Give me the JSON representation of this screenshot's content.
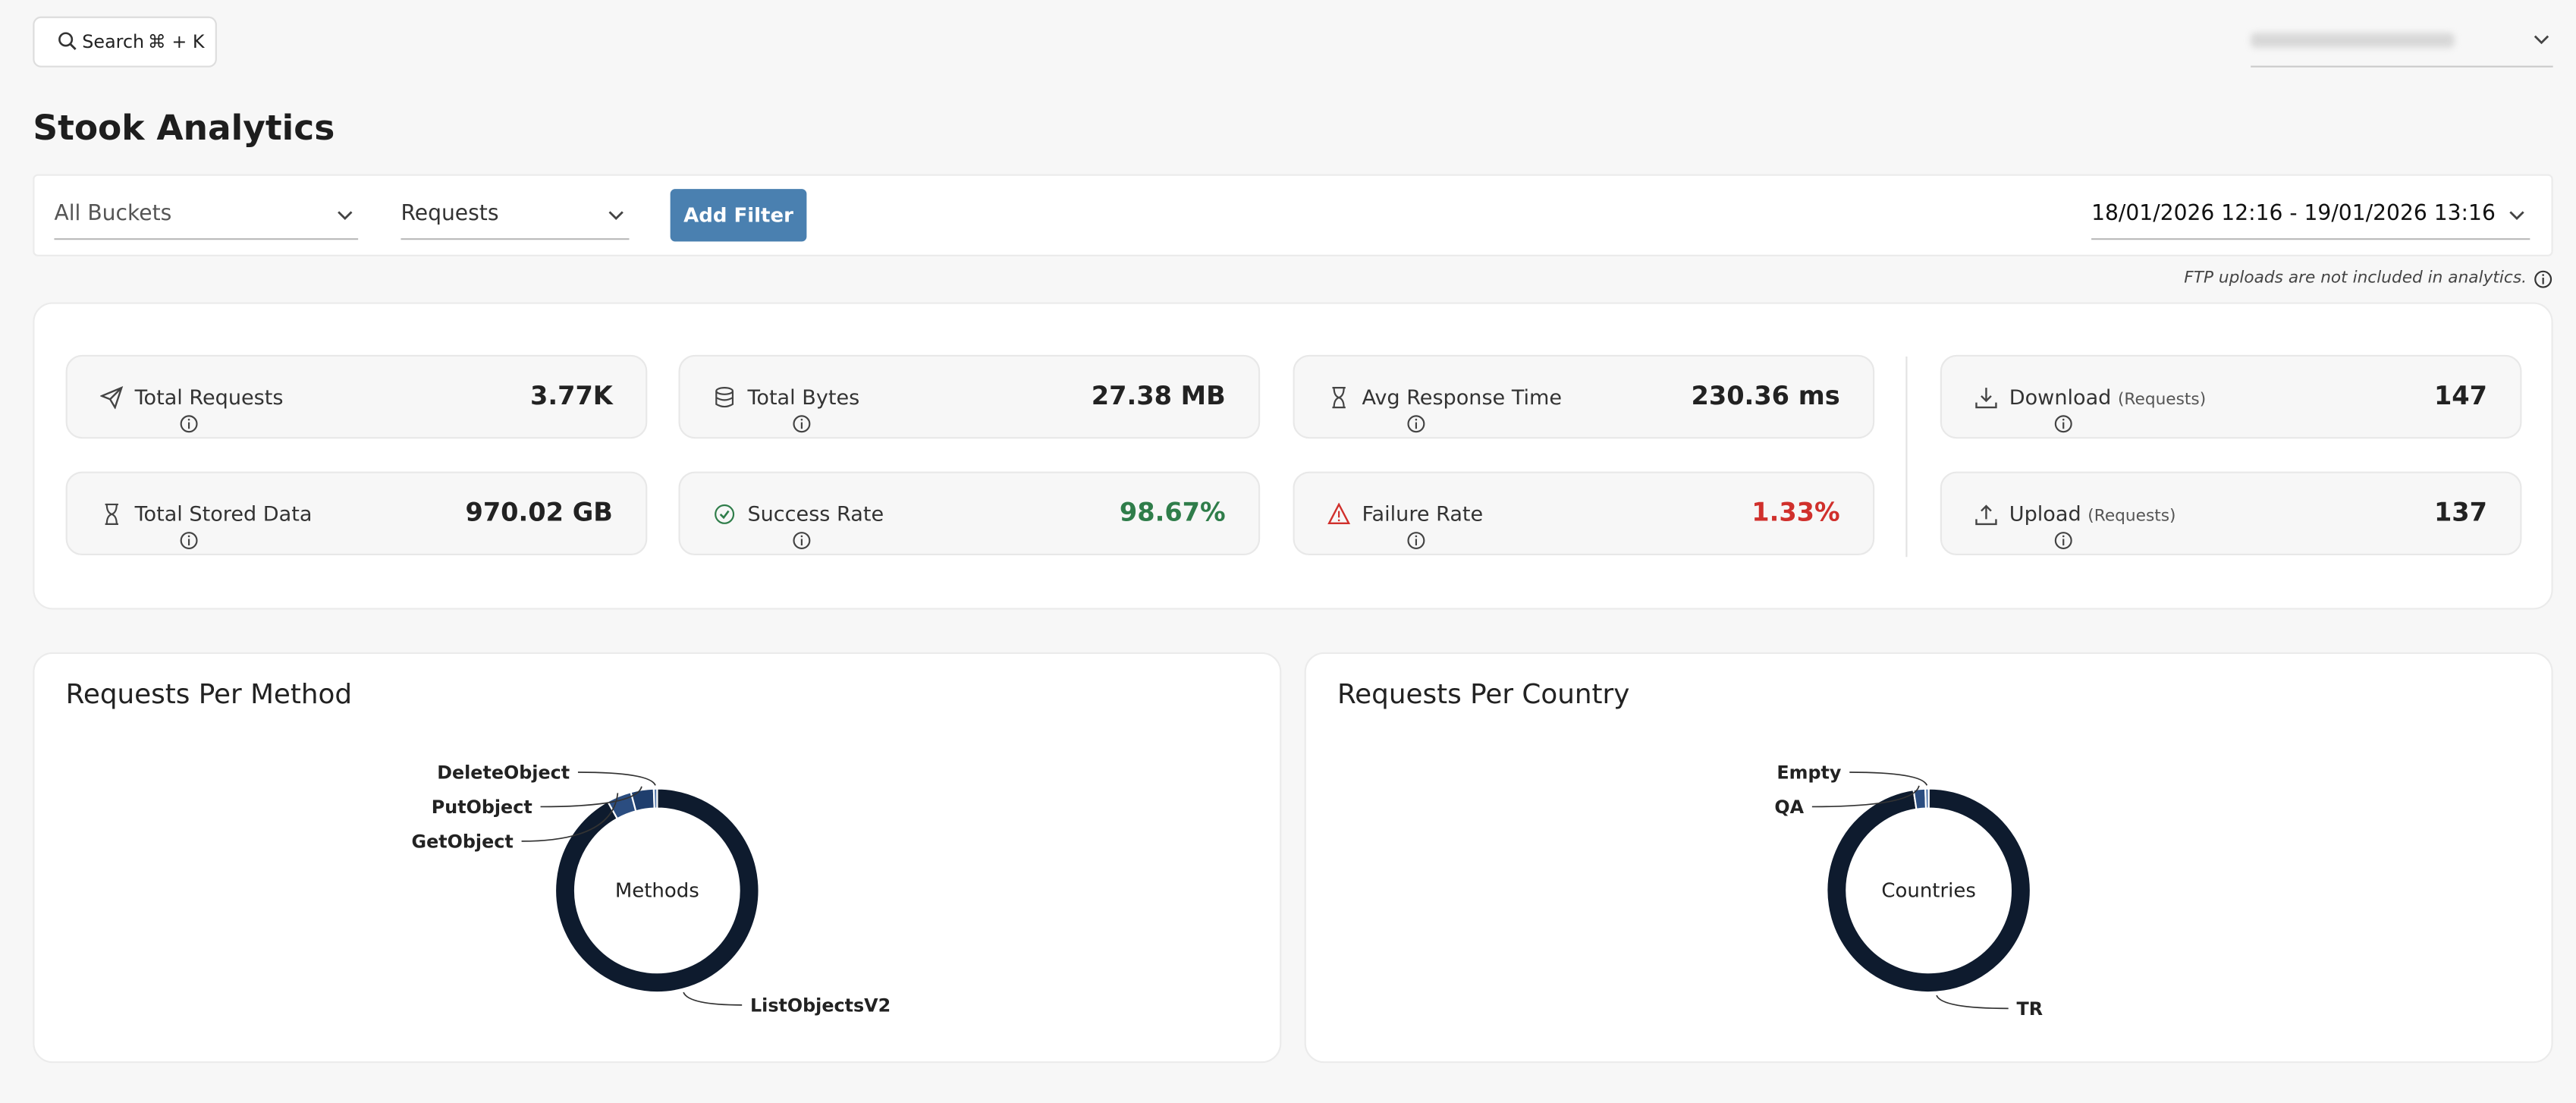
{
  "header": {
    "search": "Search",
    "shortcut": "⌘ + K"
  },
  "page": {
    "title": "Stook Analytics"
  },
  "filters": {
    "bucket": "All Buckets",
    "metric": "Requests",
    "add_filter": "Add Filter",
    "date_range": "18/01/2026 12:16 - 19/01/2026 13:16"
  },
  "note": "FTP uploads are not included in analytics.",
  "stats": [
    {
      "label": "Total Requests",
      "value": "3.77K"
    },
    {
      "label": "Total Bytes",
      "value": "27.38 MB"
    },
    {
      "label": "Avg Response Time",
      "value": "230.36 ms"
    },
    {
      "label": "Download",
      "suffix": "(Requests)",
      "value": "147"
    },
    {
      "label": "Total Stored Data",
      "value": "970.02 GB"
    },
    {
      "label": "Success Rate",
      "value": "98.67%",
      "color": "#2f7d4a"
    },
    {
      "label": "Failure Rate",
      "value": "1.33%",
      "color": "#d0302c"
    },
    {
      "label": "Upload",
      "suffix": "(Requests)",
      "value": "137"
    }
  ],
  "chart_data": [
    {
      "type": "pie",
      "title": "Requests Per Method",
      "center_label": "Methods",
      "categories": [
        "ListObjectsV2",
        "GetObject",
        "PutObject",
        "DeleteObject"
      ],
      "values": [
        3466,
        147,
        137,
        20
      ],
      "colors": [
        "#0e1b2e",
        "#2b4d80",
        "#1f3e6d",
        "#5579ad"
      ]
    },
    {
      "type": "pie",
      "title": "Requests Per Country",
      "center_label": "Countries",
      "categories": [
        "TR",
        "QA",
        "Empty"
      ],
      "values": [
        3680,
        70,
        20
      ],
      "colors": [
        "#0e1b2e",
        "#2b4d80",
        "#5579ad"
      ]
    }
  ]
}
